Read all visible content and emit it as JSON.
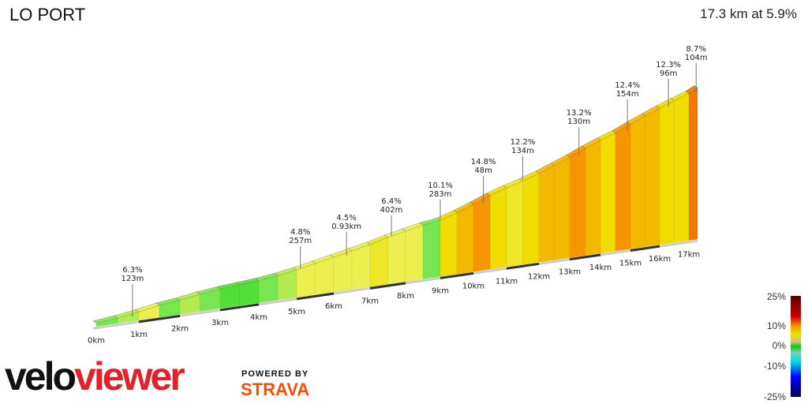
{
  "header": {
    "title": "LO PORT",
    "summary": "17.3 km at 5.9%"
  },
  "chart_data": {
    "type": "area",
    "title": "LO PORT",
    "subtitle": "17.3 km at 5.9%",
    "xlabel": "",
    "ylabel": "",
    "x_unit": "km",
    "x_ticks": [
      "0km",
      "1km",
      "2km",
      "3km",
      "4km",
      "5km",
      "6km",
      "7km",
      "8km",
      "9km",
      "10km",
      "11km",
      "12km",
      "13km",
      "14km",
      "15km",
      "16km",
      "17km"
    ],
    "total_distance_km": 17.3,
    "segments": [
      {
        "from": 0,
        "to": 0.5,
        "gradient": 3
      },
      {
        "from": 0.5,
        "to": 1,
        "gradient": 4
      },
      {
        "from": 1,
        "to": 1.5,
        "gradient": 5
      },
      {
        "from": 1.5,
        "to": 2,
        "gradient": 3
      },
      {
        "from": 2,
        "to": 2.5,
        "gradient": 4
      },
      {
        "from": 2.5,
        "to": 3,
        "gradient": 3
      },
      {
        "from": 3,
        "to": 3.5,
        "gradient": 2
      },
      {
        "from": 3.5,
        "to": 4,
        "gradient": 2
      },
      {
        "from": 4,
        "to": 4.5,
        "gradient": 3
      },
      {
        "from": 4.5,
        "to": 5,
        "gradient": 4
      },
      {
        "from": 5,
        "to": 5.5,
        "gradient": 5
      },
      {
        "from": 5.5,
        "to": 6,
        "gradient": 5
      },
      {
        "from": 6,
        "to": 6.5,
        "gradient": 5
      },
      {
        "from": 6.5,
        "to": 7,
        "gradient": 5
      },
      {
        "from": 7,
        "to": 7.5,
        "gradient": 6
      },
      {
        "from": 7.5,
        "to": 8,
        "gradient": 5
      },
      {
        "from": 8,
        "to": 8.5,
        "gradient": 5
      },
      {
        "from": 8.5,
        "to": 9,
        "gradient": 3
      },
      {
        "from": 9,
        "to": 9.5,
        "gradient": 7
      },
      {
        "from": 9.5,
        "to": 10,
        "gradient": 8
      },
      {
        "from": 10,
        "to": 10.5,
        "gradient": 9
      },
      {
        "from": 10.5,
        "to": 11,
        "gradient": 7
      },
      {
        "from": 11,
        "to": 11.5,
        "gradient": 6
      },
      {
        "from": 11.5,
        "to": 12,
        "gradient": 7
      },
      {
        "from": 12,
        "to": 12.5,
        "gradient": 8
      },
      {
        "from": 12.5,
        "to": 13,
        "gradient": 8
      },
      {
        "from": 13,
        "to": 13.5,
        "gradient": 9
      },
      {
        "from": 13.5,
        "to": 14,
        "gradient": 8
      },
      {
        "from": 14,
        "to": 14.5,
        "gradient": 7
      },
      {
        "from": 14.5,
        "to": 15,
        "gradient": 9
      },
      {
        "from": 15,
        "to": 15.5,
        "gradient": 8
      },
      {
        "from": 15.5,
        "to": 16,
        "gradient": 8
      },
      {
        "from": 16,
        "to": 16.5,
        "gradient": 7
      },
      {
        "from": 16.5,
        "to": 17,
        "gradient": 7
      },
      {
        "from": 17,
        "to": 17.3,
        "gradient": 10
      }
    ],
    "annotations": [
      {
        "km": 0.85,
        "gradient": "6.3%",
        "length": "123m"
      },
      {
        "km": 5.1,
        "gradient": "4.8%",
        "length": "257m"
      },
      {
        "km": 6.35,
        "gradient": "4.5%",
        "length": "0.93km"
      },
      {
        "km": 7.6,
        "gradient": "6.4%",
        "length": "402m"
      },
      {
        "km": 9.0,
        "gradient": "10.1%",
        "length": "283m"
      },
      {
        "km": 10.3,
        "gradient": "14.8%",
        "length": "48m"
      },
      {
        "km": 11.5,
        "gradient": "12.2%",
        "length": "134m"
      },
      {
        "km": 13.3,
        "gradient": "13.2%",
        "length": "130m"
      },
      {
        "km": 14.9,
        "gradient": "12.4%",
        "length": "154m"
      },
      {
        "km": 16.3,
        "gradient": "12.3%",
        "length": "96m"
      },
      {
        "km": 17.25,
        "gradient": "8.7%",
        "length": "104m"
      }
    ],
    "legend": {
      "placement": "bottom-right",
      "labels": [
        "25%",
        "10%",
        "0%",
        "-10%",
        "-25%"
      ],
      "values": [
        25,
        10,
        0,
        -10,
        -25
      ]
    },
    "grid": false
  },
  "branding": {
    "logo": "veloviewer",
    "logo_part1": "velo",
    "logo_part2": "viewer",
    "powered_by": "POWERED BY",
    "strava": "STRAVA"
  }
}
